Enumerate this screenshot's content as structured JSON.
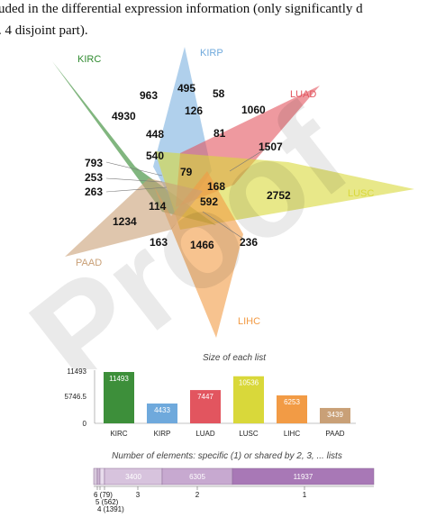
{
  "text_lines": [
    "uded in the differential expression information (only significantly d",
    ". 4 disjoint part)."
  ],
  "venn": {
    "sets": [
      {
        "name": "KIRC",
        "color": "#3d8f3a"
      },
      {
        "name": "KIRP",
        "color": "#6fa9dc"
      },
      {
        "name": "LUAD",
        "color": "#e2555f"
      },
      {
        "name": "LUSC",
        "color": "#d9d83a"
      },
      {
        "name": "LIHC",
        "color": "#f29b45"
      },
      {
        "name": "PAAD",
        "color": "#c9a077"
      }
    ],
    "regions": [
      "963",
      "495",
      "58",
      "4930",
      "126",
      "1060",
      "448",
      "81",
      "1507",
      "540",
      "79",
      "793",
      "253",
      "263",
      "168",
      "2752",
      "592",
      "1234",
      "114",
      "163",
      "1466",
      "236"
    ]
  },
  "watermark": "Proof",
  "bar_chart": {
    "title": "Size of each list",
    "yticks": [
      "11493",
      "5746.5",
      "0"
    ],
    "ymax": 11493,
    "categories": [
      "KIRC",
      "KIRP",
      "LUAD",
      "LUSC",
      "LIHC",
      "PAAD"
    ],
    "values": [
      11493,
      4433,
      7447,
      10536,
      6253,
      3439
    ],
    "value_labels": [
      "11493",
      "4433",
      "7447",
      "10536",
      "6253",
      "3439"
    ],
    "colors": [
      "#3d8f3a",
      "#6fa9dc",
      "#e2555f",
      "#d9d83a",
      "#f29b45",
      "#c9a077"
    ]
  },
  "strip": {
    "title": "Number of elements: specific (1) or shared by 2, 3, ... lists",
    "segments": [
      {
        "count": 6,
        "label": "6 (79)",
        "color": "#d8c9dc"
      },
      {
        "count": 5,
        "label": "5 (562)",
        "color": "#cdb6d3"
      },
      {
        "count": 4,
        "label": "4 (1391)",
        "color": "#e8dcec"
      },
      {
        "count": 3,
        "text": "3400",
        "color": "#d7c3dd"
      },
      {
        "count": 2,
        "text": "6305",
        "color": "#c7a9d0"
      },
      {
        "count": 1,
        "text": "11937",
        "color": "#a878b6"
      }
    ]
  }
}
